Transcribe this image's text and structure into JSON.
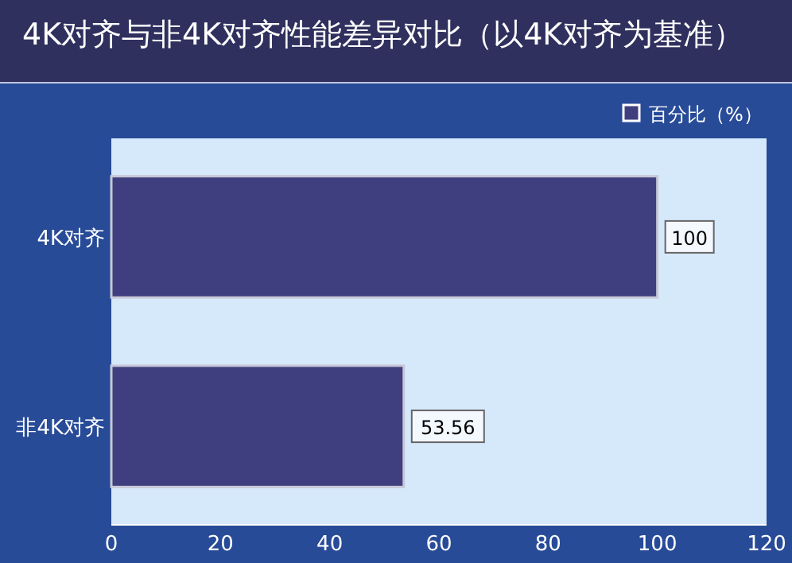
{
  "chart_data": {
    "type": "bar",
    "orientation": "horizontal",
    "title": "4K对齐与非4K对齐性能差异对比（以4K对齐为基准）",
    "categories": [
      "4K对齐",
      "非4K对齐"
    ],
    "series": [
      {
        "name": "百分比（%）",
        "color": "#3f3f7f",
        "values": [
          100,
          53.56
        ]
      }
    ],
    "xlim": [
      0,
      120
    ],
    "xticks": [
      0,
      20,
      40,
      60,
      80,
      100,
      120
    ],
    "data_labels": true,
    "legend": "top right",
    "grid": false
  }
}
